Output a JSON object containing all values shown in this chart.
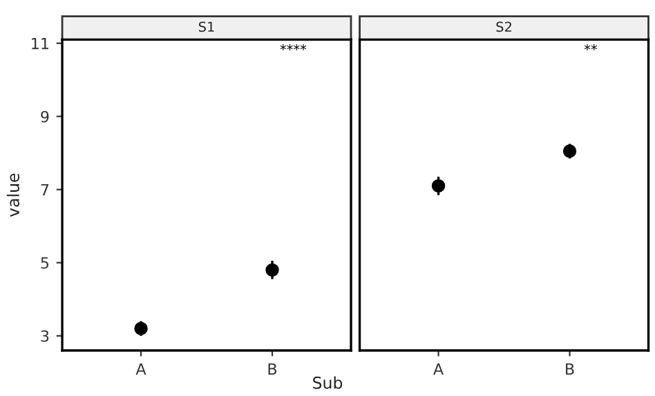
{
  "chart_data": [
    {
      "type": "scatter",
      "title": "S1",
      "ylabel": "value",
      "xlabel": "Sub",
      "categories": [
        "A",
        "B"
      ],
      "series": [
        {
          "color": "#000000",
          "values": [
            3.2,
            4.8
          ],
          "errors": [
            0.2,
            0.25
          ]
        }
      ],
      "ylim": [
        2.6,
        11.1
      ],
      "yticks": [
        3,
        5,
        7,
        9,
        11
      ],
      "marker": "circle",
      "grid": false,
      "annotations": [
        "****"
      ]
    },
    {
      "type": "scatter",
      "title": "S2",
      "categories": [
        "A",
        "B"
      ],
      "series": [
        {
          "color": "#000000",
          "values": [
            7.1,
            8.05
          ],
          "errors": [
            0.25,
            0.2
          ]
        }
      ],
      "ylim": [
        2.6,
        11.1
      ],
      "yticks": [
        3,
        5,
        7,
        9,
        11
      ],
      "tick_labels": "x",
      "marker": "circle",
      "grid": false,
      "annotations": [
        "**"
      ]
    }
  ]
}
